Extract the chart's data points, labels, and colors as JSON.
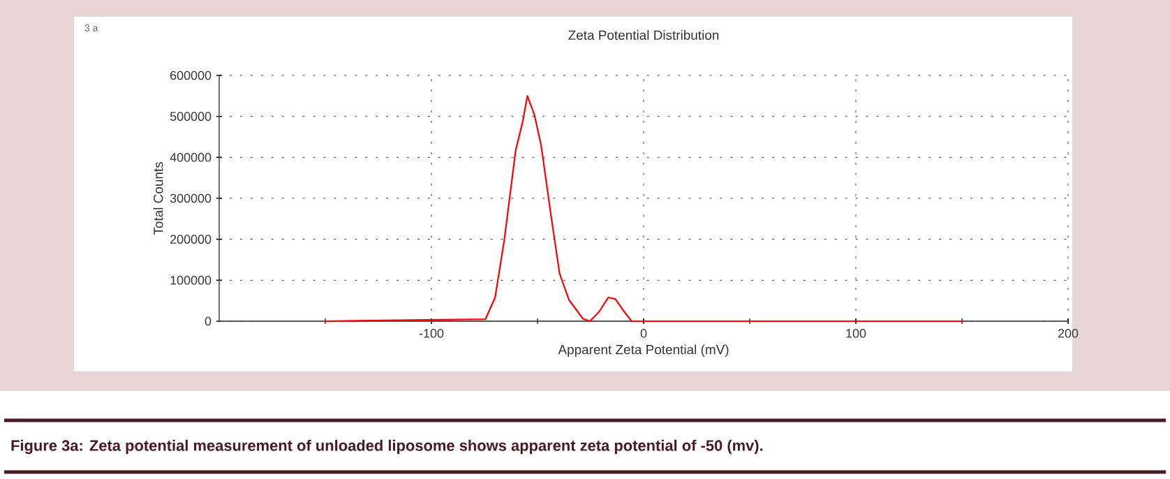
{
  "chart_data": {
    "type": "line",
    "title": "Zeta Potential Distribution",
    "xlabel": "Apparent Zeta Potential (mV)",
    "ylabel": "Total Counts",
    "annotations": [
      "3 a",
      "Figure 3a: Zeta potential measurement of unloaded liposome shows apparent zeta potential of -50 (mv)."
    ],
    "xlim": [
      -200,
      200
    ],
    "ylim": [
      0,
      600000
    ],
    "xticks": [
      {
        "value": -150,
        "label": null
      },
      -100,
      {
        "value": -50,
        "label": null
      },
      0,
      {
        "value": 50,
        "label": null
      },
      100,
      {
        "value": 150,
        "label": null
      },
      200
    ],
    "yticks": [
      0,
      100000,
      200000,
      300000,
      400000,
      500000,
      600000
    ],
    "grid": true,
    "marker": "none",
    "line_style": "solid",
    "series": [
      {
        "color": "#ff0000",
        "x": [
          -150,
          -74.5,
          -70,
          -65.7,
          -60.3,
          -57,
          -54.8,
          -51.5,
          -48.3,
          -43.9,
          -39.6,
          -35.2,
          -28.6,
          -25.3,
          -21,
          -16.6,
          -13.3,
          -10,
          -5.7,
          150
        ],
        "values": [
          0,
          5000,
          58000,
          197000,
          417000,
          487000,
          550000,
          504000,
          429000,
          267000,
          116000,
          52000,
          6000,
          0,
          23000,
          58000,
          54000,
          29000,
          0,
          0
        ]
      }
    ]
  }
}
